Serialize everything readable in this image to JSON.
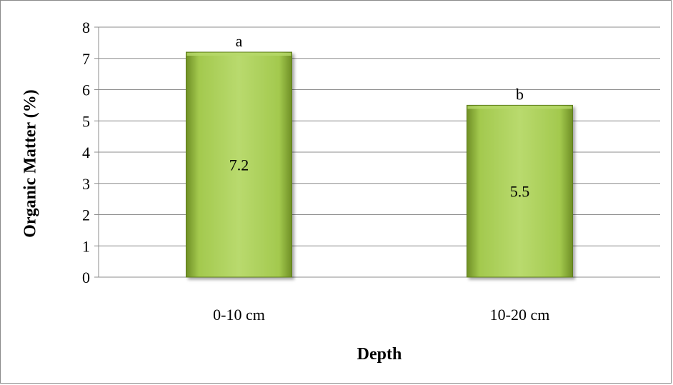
{
  "chart_data": {
    "type": "bar",
    "title": "",
    "xlabel": "Depth",
    "ylabel": "Organic Matter (%)",
    "ylim": [
      0,
      8
    ],
    "yticks": [
      0,
      1,
      2,
      3,
      4,
      5,
      6,
      7,
      8
    ],
    "grid": true,
    "categories": [
      "0-10 cm",
      "10-20 cm"
    ],
    "values": [
      7.2,
      5.5
    ],
    "data_labels": [
      "7.2",
      "5.5"
    ],
    "significance_letters": [
      "a",
      "b"
    ],
    "bar_color": "#8db53a",
    "bar_color_dark": "#5e7f1c",
    "bar_color_light": "#b6d86a"
  }
}
